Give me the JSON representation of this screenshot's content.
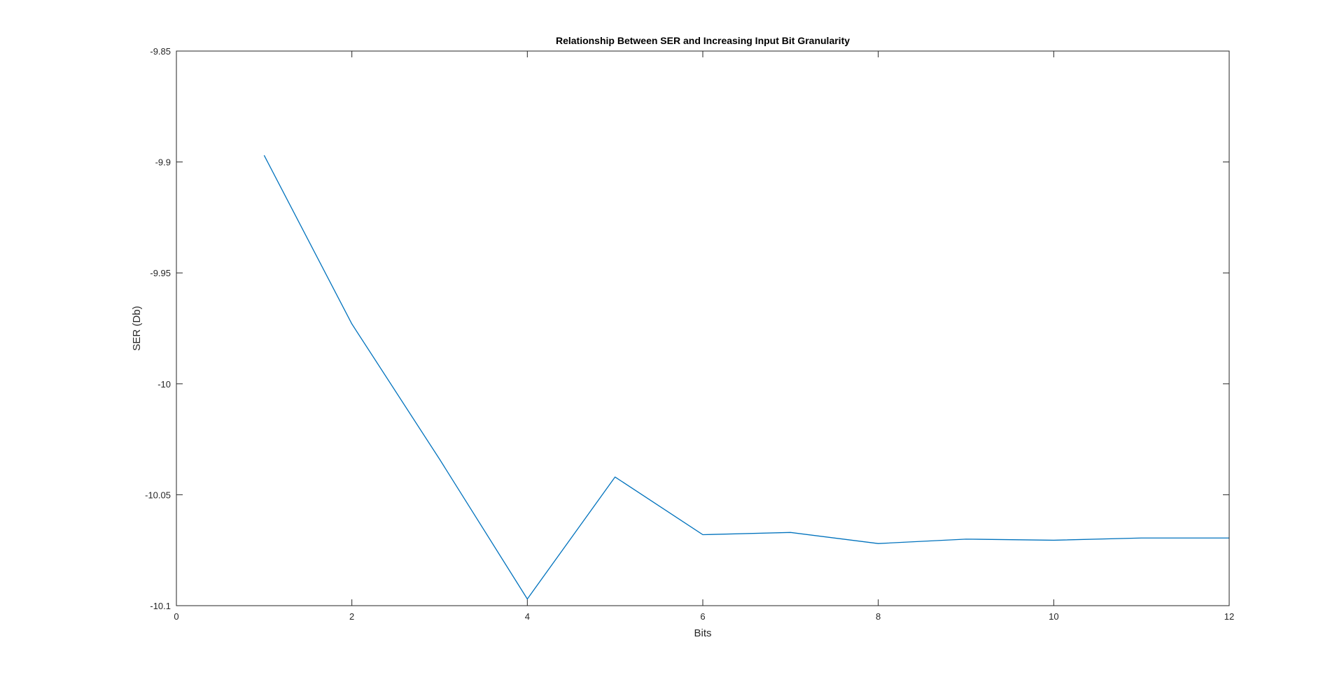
{
  "chart_data": {
    "type": "line",
    "title": "Relationship Between SER and Increasing Input Bit Granularity",
    "xlabel": "Bits",
    "ylabel": "SER (Db)",
    "xlim": [
      0,
      12
    ],
    "ylim": [
      -10.1,
      -9.85
    ],
    "xticks": [
      0,
      2,
      4,
      6,
      8,
      10,
      12
    ],
    "xtick_labels": [
      "0",
      "2",
      "4",
      "6",
      "8",
      "10",
      "12"
    ],
    "yticks": [
      -9.85,
      -9.9,
      -9.95,
      -10,
      -10.05,
      -10.1
    ],
    "ytick_labels": [
      "-9.85",
      "-9.9",
      "-9.95",
      "-10",
      "-10.05",
      "-10.1"
    ],
    "grid": false,
    "legend": "none",
    "series": [
      {
        "color": "#0072BD",
        "x": [
          1,
          2,
          3,
          4,
          5,
          6,
          7,
          8,
          9,
          10,
          11,
          12
        ],
        "y": [
          -9.897,
          -9.973,
          -10.034,
          -10.097,
          -10.042,
          -10.068,
          -10.067,
          -10.072,
          -10.07,
          -10.0705,
          -10.0695,
          -10.0695
        ]
      }
    ]
  }
}
